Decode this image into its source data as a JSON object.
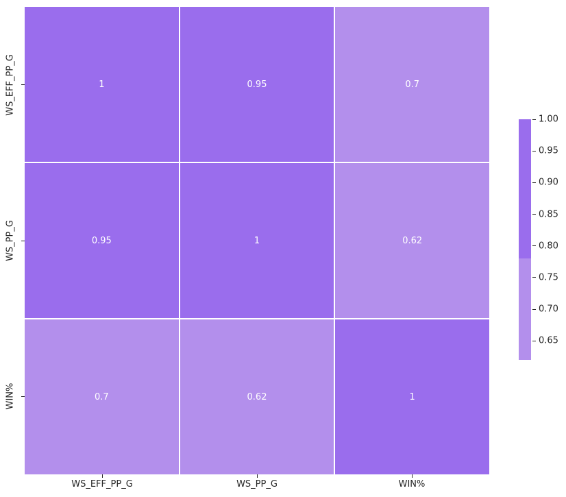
{
  "figure": {
    "background": "#ffffff"
  },
  "chart_data": {
    "type": "heatmap",
    "title": "",
    "xlabel": "",
    "ylabel": "",
    "x_tick_labels": [
      "WS_EFF_PP_G",
      "WS_PP_G",
      "WIN%"
    ],
    "y_tick_labels": [
      "WS_EFF_PP_G",
      "WS_PP_G",
      "WIN%"
    ],
    "matrix": [
      [
        1.0,
        0.95,
        0.7
      ],
      [
        0.95,
        1.0,
        0.62
      ],
      [
        0.7,
        0.62,
        1.0
      ]
    ],
    "cell_labels": [
      [
        "1",
        "0.95",
        "0.7"
      ],
      [
        "0.95",
        "1",
        "0.62"
      ],
      [
        "0.7",
        "0.62",
        "1"
      ]
    ],
    "colors": {
      "high": "#9a6ded",
      "low": "#b38fec",
      "high_threshold": 0.78,
      "annotation_text": "#ffffff",
      "grid_lines": "#ffffff",
      "axis_text": "#262626"
    },
    "colorbar": {
      "vmin": 0.62,
      "vmax": 1.0,
      "color_boundary_value": 0.78,
      "tick_values": [
        1.0,
        0.95,
        0.9,
        0.85,
        0.8,
        0.75,
        0.7,
        0.65
      ],
      "tick_labels": [
        "1.00",
        "0.95",
        "0.90",
        "0.85",
        "0.80",
        "0.75",
        "0.70",
        "0.65"
      ],
      "position": "right"
    },
    "grid": true,
    "legend": null
  }
}
